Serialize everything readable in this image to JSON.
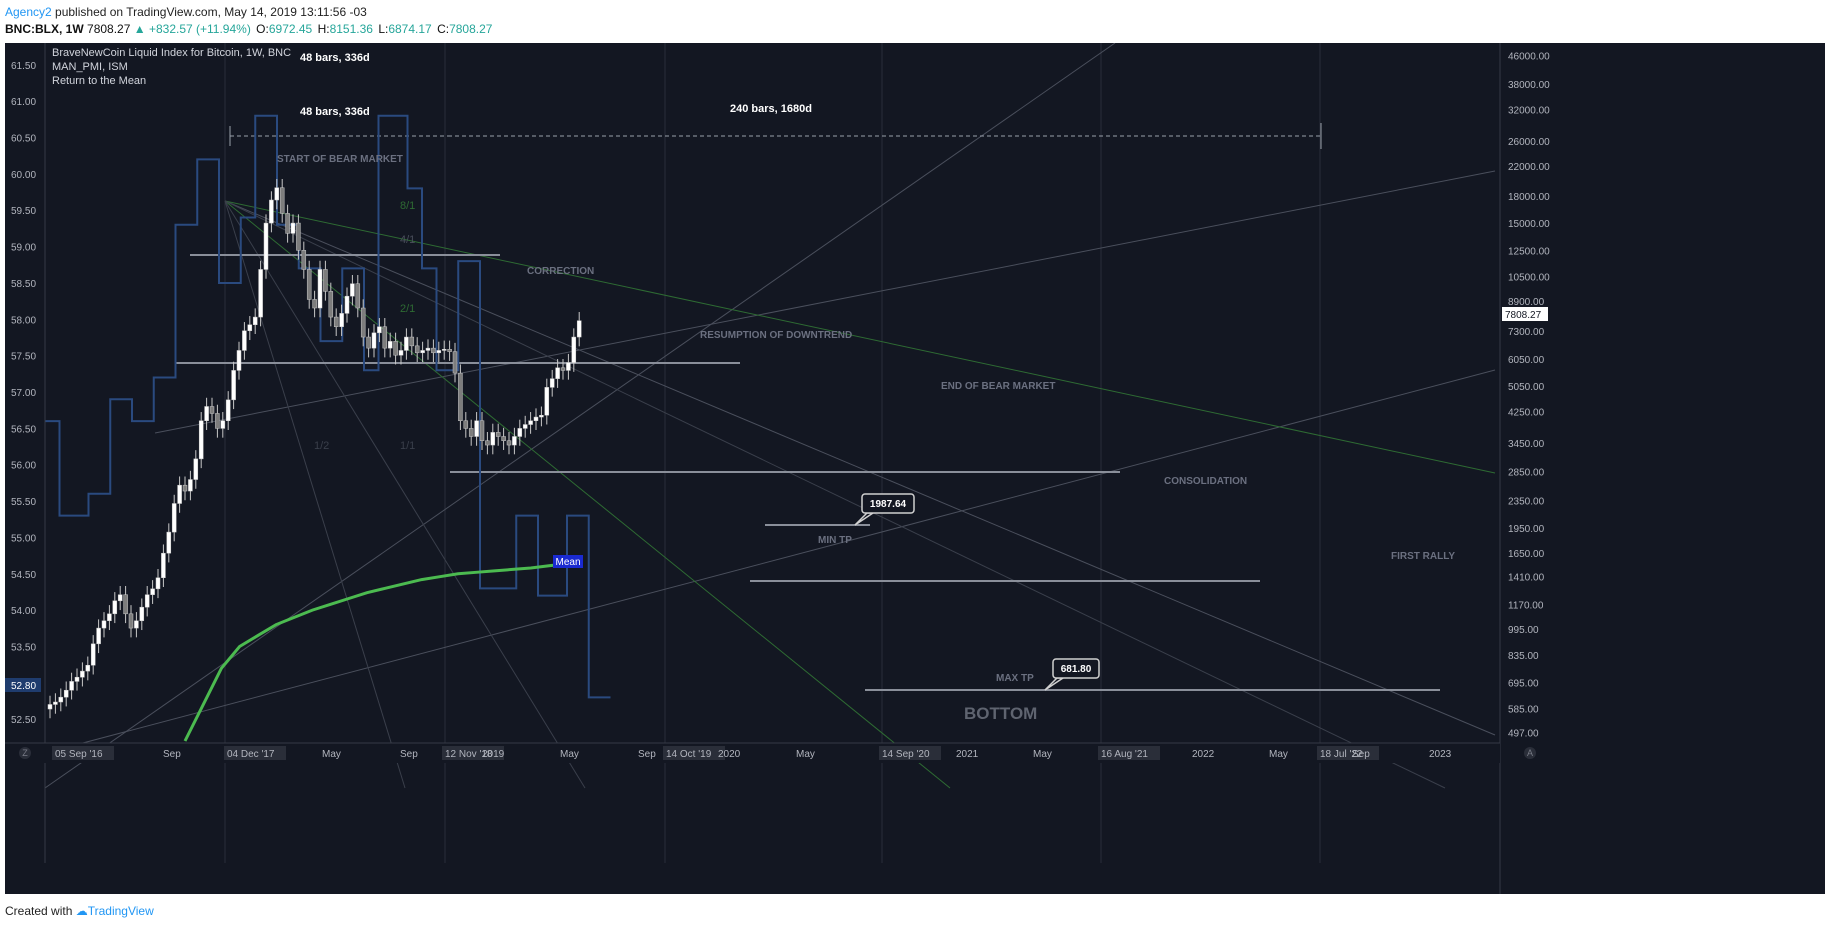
{
  "header": {
    "user": "Agency2",
    "published_text": " published on TradingView.com, May 14, 2019 13:11:56 -03"
  },
  "symbol_bar": {
    "symbol": "BNC:BLX, 1W",
    "last": "7808.27",
    "change": "▲ +832.57 (+11.94%)",
    "open_label": "O:",
    "open": "6972.45",
    "high_label": "H:",
    "high": "8151.36",
    "low_label": "L:",
    "low": "6874.17",
    "close_label": "C:",
    "close": "7808.27"
  },
  "legend": {
    "main": "BraveNewCoin Liquid Index for Bitcoin, 1W, BNC",
    "indicator": "MAN_PMI, ISM",
    "study": "Return to the Mean"
  },
  "colors": {
    "background": "#131722",
    "pmi_line": "#2a4a7f",
    "mean_line": "#4cbb50",
    "candle": "#c8c8c8",
    "annotation": "#7a7f8a",
    "current_price_label": "#ffffff",
    "left_axis_marker": "#1f3c6e"
  },
  "left_axis": {
    "ticks": [
      "61.50",
      "61.00",
      "60.50",
      "60.00",
      "59.50",
      "59.00",
      "58.50",
      "58.00",
      "57.50",
      "57.00",
      "56.50",
      "56.00",
      "55.50",
      "55.00",
      "54.50",
      "54.00",
      "53.50",
      "53.00",
      "52.50"
    ],
    "marker": "52.80"
  },
  "right_axis": {
    "ticks": [
      "46000.00",
      "38000.00",
      "32000.00",
      "26000.00",
      "22000.00",
      "18000.00",
      "15000.00",
      "12500.00",
      "10500.00",
      "8900.00",
      "7300.00",
      "6050.00",
      "5050.00",
      "4250.00",
      "3450.00",
      "2850.00",
      "2350.00",
      "1950.00",
      "1650.00",
      "1410.00",
      "1170.00",
      "995.00",
      "835.00",
      "695.00",
      "585.00",
      "497.00"
    ],
    "current_price": "7808.27"
  },
  "x_axis": {
    "labels": [
      "05 Sep '16",
      "Sep",
      "04 Dec '17",
      "May",
      "Sep",
      "12 Nov '18",
      "2019",
      "May",
      "Sep",
      "14 Oct '19",
      "2020",
      "May",
      "14 Sep '20",
      "2021",
      "May",
      "16 Aug '21",
      "2022",
      "May",
      "18 Jul '22",
      "Sep",
      "2023"
    ],
    "corner_left": "Z",
    "corner_right": "A"
  },
  "annotations": {
    "bars_1": "48 bars, 336d",
    "bars_2": "48 bars, 336d",
    "bars_3": "240 bars, 1680d",
    "start_bear": "START OF BEAR MARKET",
    "correction": "CORRECTION",
    "resumption": "RESUMPTION OF DOWNTREND",
    "end_bear": "END OF BEAR MARKET",
    "consolidation": "CONSOLIDATION",
    "first_rally": "FIRST RALLY",
    "min_tp": "MIN TP",
    "max_tp": "MAX TP",
    "bottom": "BOTTOM",
    "callout_1": "1987.64",
    "callout_2": "681.80",
    "mean_label": "Mean",
    "fan_81": "8/1",
    "fan_41": "4/1",
    "fan_21": "2/1",
    "fan_11": "1/1",
    "fan_12": "1/2"
  },
  "chart_data": {
    "type": "candlestick",
    "title": "BraveNewCoin Liquid Index for Bitcoin, 1W, BNC",
    "price_axis": {
      "scale": "log",
      "range": [
        470,
        50000
      ]
    },
    "pmi_axis": {
      "range": [
        52.2,
        61.8
      ]
    },
    "price_closes": [
      600,
      610,
      630,
      660,
      700,
      720,
      750,
      780,
      900,
      1000,
      1050,
      1100,
      1200,
      1250,
      1100,
      1000,
      1050,
      1150,
      1250,
      1300,
      1400,
      1650,
      1900,
      2300,
      2600,
      2500,
      2700,
      3100,
      4000,
      4400,
      4200,
      3800,
      4000,
      4600,
      5600,
      6400,
      7300,
      7600,
      8000,
      11000,
      15000,
      17500,
      19000,
      16000,
      14000,
      15000,
      12500,
      11000,
      9000,
      8500,
      11000,
      9500,
      8000,
      7500,
      8200,
      9200,
      10000,
      8500,
      7000,
      6500,
      7200,
      7500,
      6500,
      6800,
      6200,
      6400,
      7000,
      6600,
      6300,
      6400,
      6500,
      6300,
      6400,
      6450,
      6350,
      5500,
      4000,
      3800,
      3600,
      4000,
      3500,
      3400,
      3700,
      3600,
      3500,
      3400,
      3600,
      3800,
      3900,
      4000,
      4100,
      4150,
      5000,
      5300,
      5700,
      5600,
      5900,
      7000,
      7808
    ],
    "pmi_steps": [
      56.6,
      56.6,
      55.3,
      55.3,
      55.3,
      55.3,
      55.6,
      55.6,
      55.6,
      56.9,
      56.9,
      56.9,
      56.6,
      56.6,
      56.6,
      57.2,
      57.2,
      57.2,
      59.3,
      59.3,
      59.3,
      60.2,
      60.2,
      60.2,
      58.5,
      58.5,
      58.5,
      59.4,
      59.4,
      60.8,
      60.8,
      60.8,
      59.3,
      59.3,
      59.3,
      58.7,
      58.7,
      58.7,
      57.7,
      57.7,
      57.7,
      58.7,
      58.7,
      58.7,
      57.3,
      57.3,
      60.8,
      60.8,
      60.8,
      60.8,
      59.8,
      59.8,
      58.7,
      58.7,
      57.3,
      57.3,
      57.3,
      58.8,
      58.8,
      58.8,
      54.3,
      54.3,
      54.3,
      54.3,
      54.3,
      55.3,
      55.3,
      55.3,
      54.2,
      54.2,
      54.2,
      54.2,
      55.3,
      55.3,
      55.3,
      52.8,
      52.8,
      52.8
    ],
    "mean_values": [
      52.2,
      52.7,
      53.2,
      53.5,
      53.65,
      53.8,
      53.9,
      54.0,
      54.08,
      54.16,
      54.24,
      54.3,
      54.36,
      54.42,
      54.46,
      54.5,
      54.52,
      54.54,
      54.56,
      54.58,
      54.61,
      54.64
    ],
    "x_labels": [
      "05 Sep '16",
      "Sep",
      "04 Dec '17",
      "May",
      "Sep",
      "12 Nov '18",
      "2019",
      "May",
      "Sep",
      "14 Oct '19",
      "2020",
      "May",
      "14 Sep '20",
      "2021",
      "May",
      "16 Aug '21",
      "2022",
      "May",
      "18 Jul '22",
      "Sep",
      "2023"
    ],
    "levels": {
      "min_tp": 1987.64,
      "max_tp": 681.8,
      "current": 7808.27
    }
  }
}
